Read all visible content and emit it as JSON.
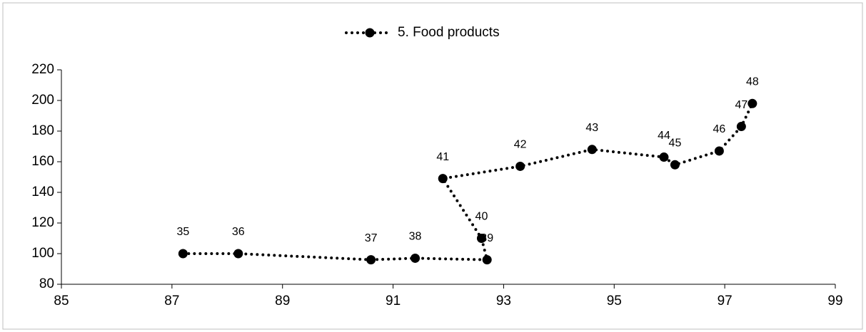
{
  "chart_data": {
    "type": "scatter",
    "series": [
      {
        "name": "5. Food products",
        "color": "#000000",
        "x": [
          87.2,
          88.2,
          90.6,
          91.4,
          92.7,
          92.6,
          91.9,
          93.3,
          94.6,
          95.9,
          96.1,
          96.9,
          97.3,
          97.5
        ],
        "values": [
          100,
          100,
          96,
          97,
          96,
          110,
          149,
          157,
          168,
          163,
          158,
          167,
          183,
          198
        ],
        "point_labels": [
          "35",
          "36",
          "37",
          "38",
          "39",
          "40",
          "41",
          "42",
          "43",
          "44",
          "45",
          "46",
          "47",
          "48"
        ]
      }
    ],
    "xlim": [
      85,
      99
    ],
    "xticks": [
      85,
      87,
      89,
      91,
      93,
      95,
      97,
      99
    ],
    "ylim": [
      80,
      220
    ],
    "yticks": [
      80,
      100,
      120,
      140,
      160,
      180,
      200,
      220
    ],
    "grid": false,
    "legend": "top"
  }
}
